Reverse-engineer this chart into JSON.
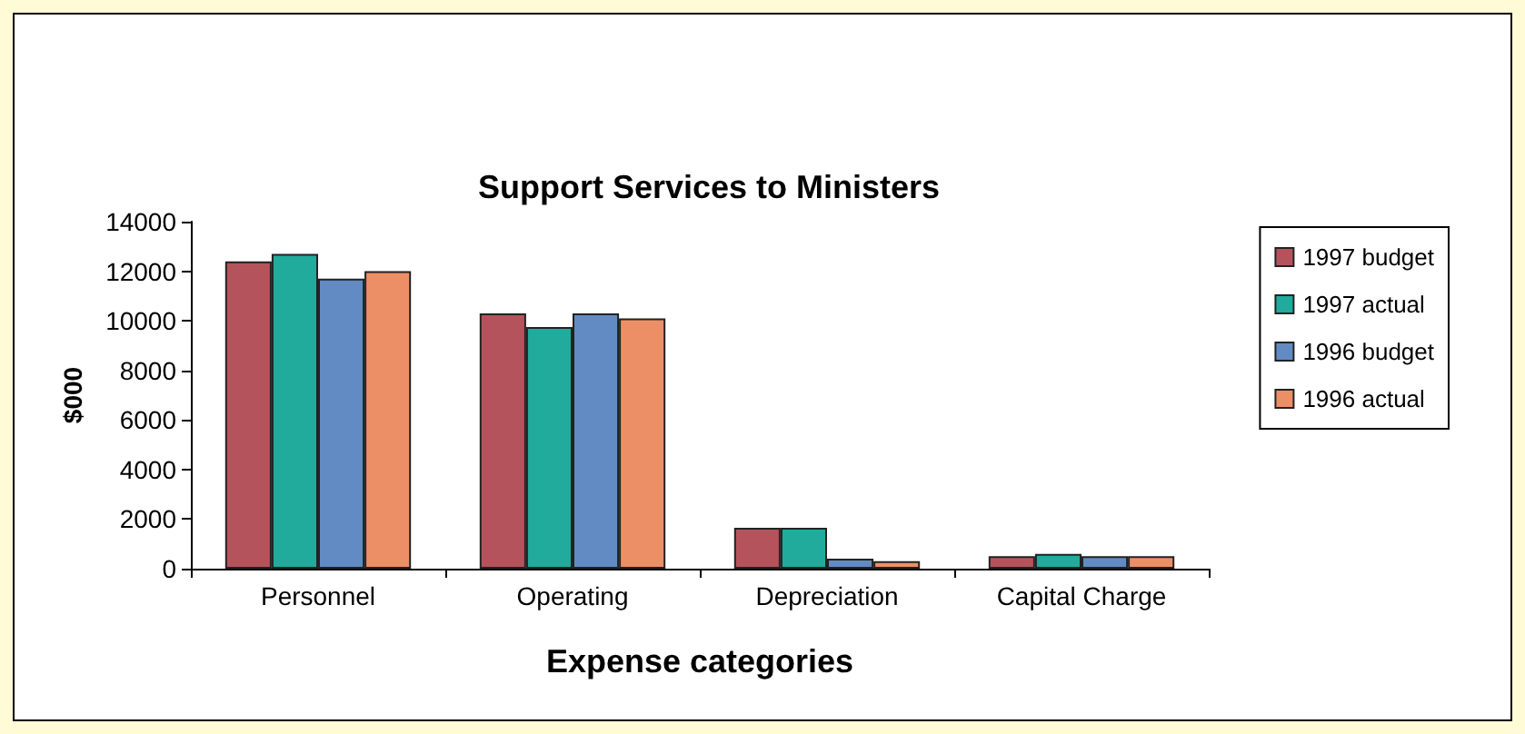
{
  "chart_data": {
    "type": "bar",
    "title": "Support Services to Ministers",
    "xlabel": "Expense categories",
    "ylabel": "$000",
    "categories": [
      "Personnel",
      "Operating",
      "Depreciation",
      "Capital Charge"
    ],
    "series": [
      {
        "name": "1997 budget",
        "color": "#b5535c",
        "values": [
          12400,
          10300,
          1650,
          500
        ]
      },
      {
        "name": "1997 actual",
        "color": "#20ab9c",
        "values": [
          12700,
          9750,
          1650,
          600
        ]
      },
      {
        "name": "1996 budget",
        "color": "#628bc4",
        "values": [
          11700,
          10300,
          400,
          500
        ]
      },
      {
        "name": "1996 actual",
        "color": "#ec8f66",
        "values": [
          12000,
          10100,
          300,
          500
        ]
      }
    ],
    "ylim": [
      0,
      14000
    ],
    "yticks": [
      0,
      2000,
      4000,
      6000,
      8000,
      10000,
      12000,
      14000
    ],
    "grid": false,
    "legend": "right"
  }
}
